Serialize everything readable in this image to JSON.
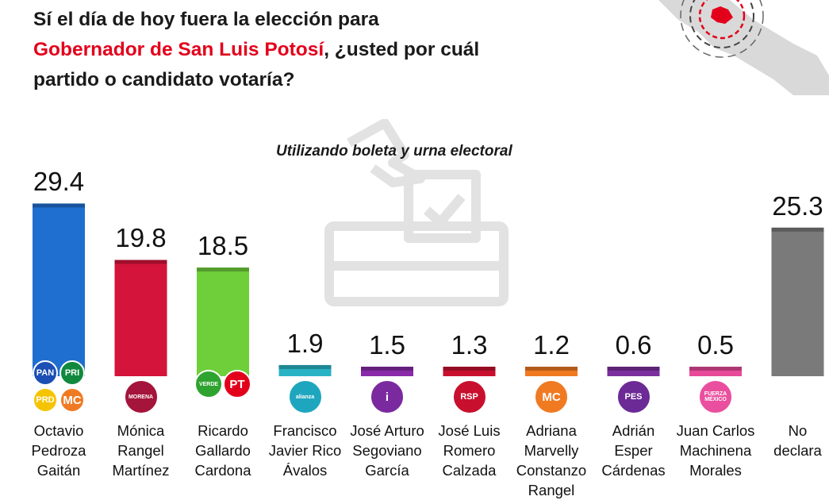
{
  "title": {
    "line1": "Sí el día de hoy fuera la elección para",
    "highlight": "Gobernador de San Luis Potosí",
    "line2_rest": ", ¿usted por cuál",
    "line3": "partido o candidato votaría?",
    "accent_color": "#e3001b"
  },
  "subtitle": "Utilizando boleta y urna electoral",
  "chart_data": {
    "type": "bar",
    "categories": [
      "Octavio\nPedroza\nGaitán",
      "Mónica\nRangel\nMartínez",
      "Ricardo\nGallardo\nCardona",
      "Francisco\nJavier Rico\nÁvalos",
      "José Arturo\nSegoviano\nGarcía",
      "José Luis\nRomero\nCalzada",
      "Adriana\nMarvelly\nConstanzo\nRangel",
      "Adrián\nEsper\nCárdenas",
      "Juan Carlos\nMachinena\nMorales",
      "No\ndeclara"
    ],
    "values": [
      29.4,
      19.8,
      18.5,
      1.9,
      1.5,
      1.3,
      1.2,
      0.6,
      0.5,
      25.3
    ],
    "value_labels": [
      "29.4",
      "19.8",
      "18.5",
      "1.9",
      "1.5",
      "1.3",
      "1.2",
      "0.6",
      "0.5",
      "25.3"
    ],
    "colors": [
      "#1f6fd1",
      "#d4143a",
      "#6fcf3a",
      "#2ab3c5",
      "#8a2aa8",
      "#c8102e",
      "#f07a22",
      "#7b2f9e",
      "#e84a9a",
      "#7a7a7a"
    ],
    "ylim": [
      0,
      30
    ],
    "grid": false,
    "legend": "none"
  },
  "logos": [
    [
      {
        "text": "PAN",
        "color": "#1b4fb5",
        "icon": "pan-logo-icon"
      },
      {
        "text": "PRI",
        "color": "#10893e",
        "icon": "pri-logo-icon"
      },
      {
        "text": "PRD",
        "color": "#f5c400",
        "icon": "prd-logo-icon"
      },
      {
        "text": "MC",
        "color": "#f07a22",
        "icon": "mc-logo-icon"
      }
    ],
    [
      {
        "text": "MORENA",
        "color": "#a5143a",
        "icon": "morena-logo-icon"
      }
    ],
    [
      {
        "text": "VERDE",
        "color": "#2fa32f",
        "icon": "verde-logo-icon"
      },
      {
        "text": "PT",
        "color": "#e3001b",
        "icon": "pt-logo-icon"
      }
    ],
    [
      {
        "text": "alianza",
        "color": "#1fa6bf",
        "icon": "nueva-alianza-logo-icon"
      }
    ],
    [
      {
        "text": "i",
        "color": "#7a2a9e",
        "icon": "independiente-logo-icon"
      }
    ],
    [
      {
        "text": "RSP",
        "color": "#c8102e",
        "icon": "rsp-logo-icon"
      }
    ],
    [
      {
        "text": "MC",
        "color": "#f07a22",
        "icon": "movimiento-ciudadano-logo-icon"
      }
    ],
    [
      {
        "text": "PES",
        "color": "#6b2a95",
        "icon": "pes-logo-icon"
      }
    ],
    [
      {
        "text": "FUERZA MÉXICO",
        "color": "#ea4f9f",
        "icon": "fuerza-mexico-logo-icon"
      }
    ],
    []
  ]
}
